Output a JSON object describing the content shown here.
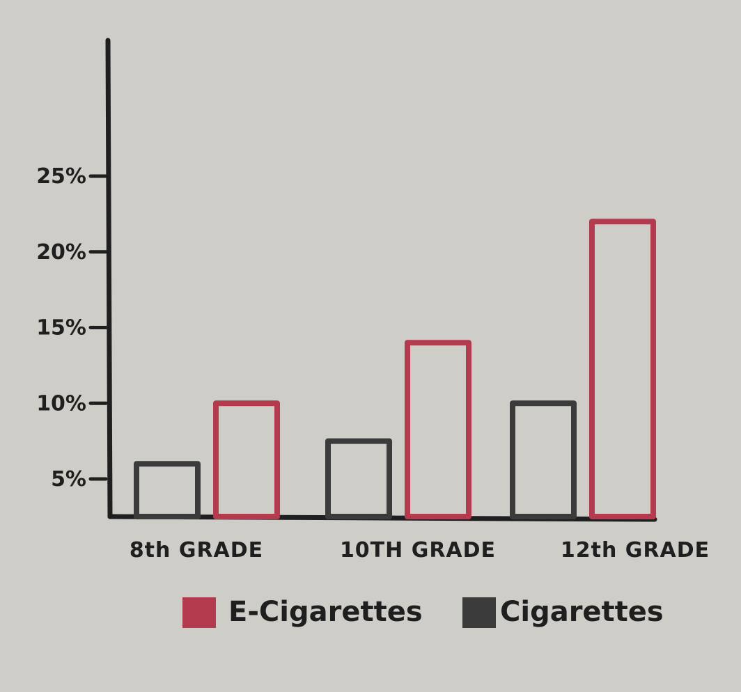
{
  "chart_data": {
    "type": "bar",
    "categories": [
      "8th GRADE",
      "10TH GRADE",
      "12th GRADE"
    ],
    "series": [
      {
        "name": "Cigarettes",
        "values": [
          6,
          7.5,
          10
        ]
      },
      {
        "name": "E-Cigarettes",
        "values": [
          10,
          14,
          22
        ]
      }
    ],
    "y_ticks": [
      {
        "value": 5,
        "label": "5%"
      },
      {
        "value": 10,
        "label": "10%"
      },
      {
        "value": 15,
        "label": "15%"
      },
      {
        "value": 20,
        "label": "20%"
      },
      {
        "value": 25,
        "label": "25%"
      }
    ],
    "ylim": [
      3,
      26
    ],
    "grid": false,
    "legend": {
      "placement": "bottom",
      "entries": [
        {
          "name": "E-Cigarettes",
          "color": "#b43a4d"
        },
        {
          "name": "Cigarettes",
          "color": "#3b3b3b"
        }
      ]
    },
    "colors": {
      "Cigarettes": "#3b3b3b",
      "E-Cigarettes": "#b43a4d",
      "axis": "#1f1f1f"
    }
  }
}
